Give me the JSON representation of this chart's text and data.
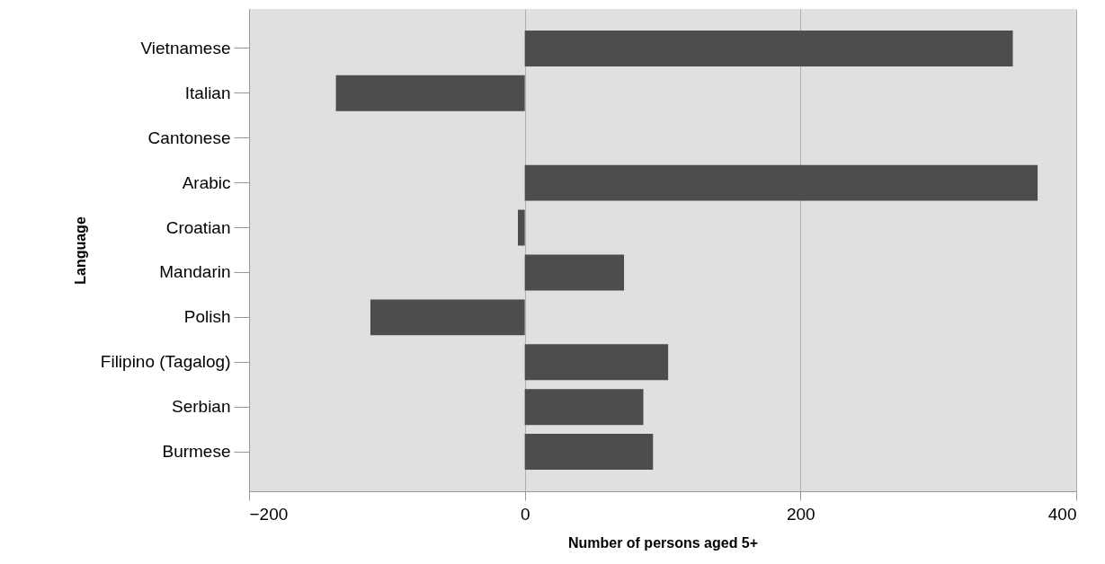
{
  "chart_data": {
    "type": "bar",
    "orientation": "horizontal",
    "xlabel": "Number of persons aged 5+",
    "ylabel": "Language",
    "categories": [
      "Vietnamese",
      "Italian",
      "Cantonese",
      "Arabic",
      "Croatian",
      "Mandarin",
      "Polish",
      "Filipino (Tagalog)",
      "Serbian",
      "Burmese"
    ],
    "values": [
      354,
      -137,
      0,
      372,
      -5,
      72,
      -112,
      104,
      86,
      93
    ],
    "color": "#4d4d4d",
    "xlim": [
      -200,
      400
    ],
    "xticks": [
      -200,
      0,
      200,
      400
    ],
    "grid": "x"
  }
}
